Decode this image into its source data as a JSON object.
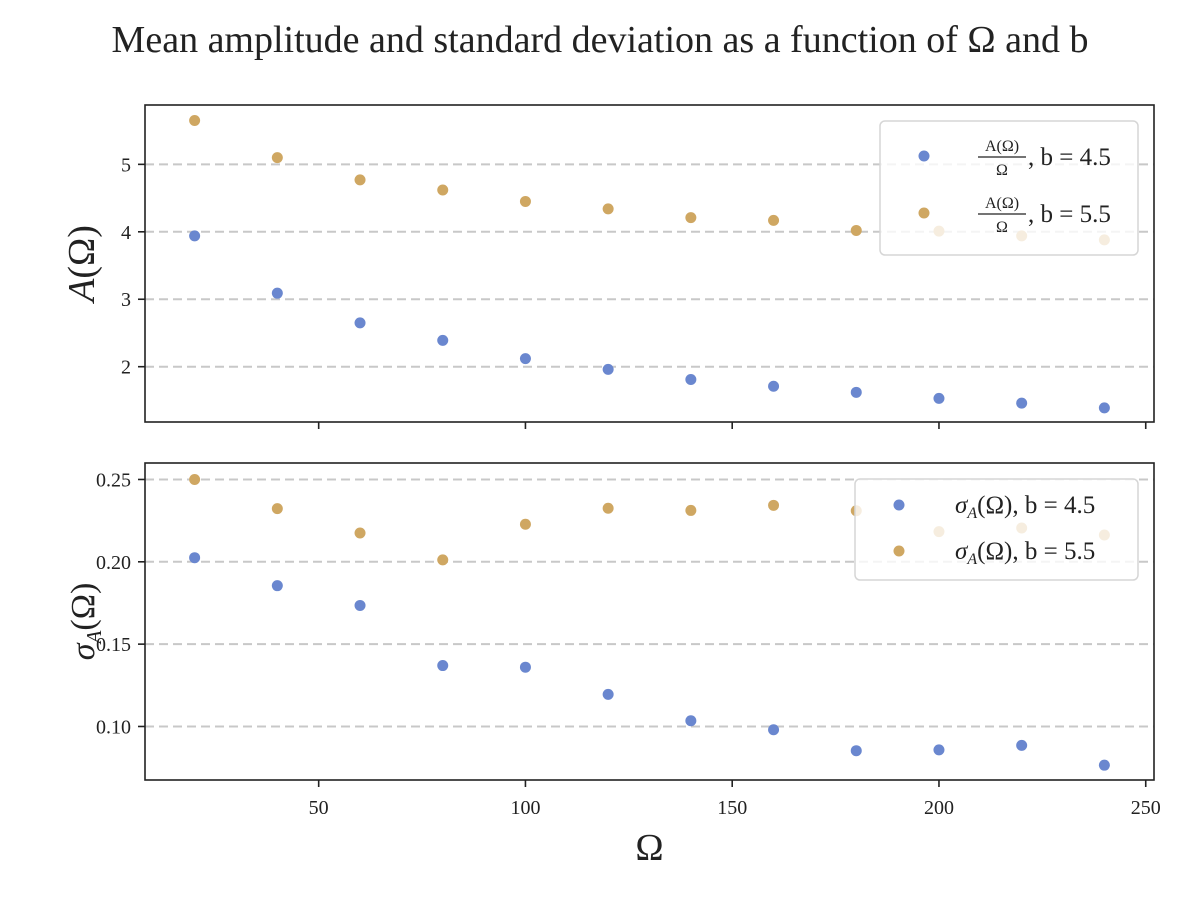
{
  "title": "Mean amplitude and standard deviation as a function of Ω and b",
  "chart_data": [
    {
      "type": "scatter",
      "ylabel": "A(Ω)",
      "xlabel": "",
      "xlim": [
        8,
        252
      ],
      "ylim": [
        1.18,
        5.88
      ],
      "yticks": [
        2,
        3,
        4,
        5
      ],
      "ytick_labels": [
        "2",
        "3",
        "4",
        "5"
      ],
      "xticks": [
        50,
        100,
        150,
        200,
        250
      ],
      "show_xtick_labels": false,
      "grid": "y-dashed",
      "legend_position": "top-right",
      "series": [
        {
          "name": "A(Ω)/Ω, b = 4.5",
          "legend_fraction_num": "A(Ω)",
          "legend_fraction_den": "Ω",
          "legend_suffix": ", b = 4.5",
          "color": "#6a87cf",
          "x": [
            20,
            40,
            60,
            80,
            100,
            120,
            140,
            160,
            180,
            200,
            220,
            240
          ],
          "y": [
            3.94,
            3.09,
            2.65,
            2.39,
            2.12,
            1.96,
            1.81,
            1.71,
            1.62,
            1.53,
            1.46,
            1.39
          ]
        },
        {
          "name": "A(Ω)/Ω, b = 5.5",
          "legend_fraction_num": "A(Ω)",
          "legend_fraction_den": "Ω",
          "legend_suffix": ", b = 5.5",
          "color": "#cfa762",
          "x": [
            20,
            40,
            60,
            80,
            100,
            120,
            140,
            160,
            180,
            200,
            220,
            240
          ],
          "y": [
            5.65,
            5.1,
            4.77,
            4.62,
            4.45,
            4.34,
            4.21,
            4.17,
            4.02,
            4.01,
            3.94,
            3.88
          ]
        }
      ]
    },
    {
      "type": "scatter",
      "ylabel": "σA(Ω)",
      "xlabel": "Ω",
      "xlim": [
        8,
        252
      ],
      "ylim": [
        0.0675,
        0.26
      ],
      "yticks": [
        0.1,
        0.15,
        0.2,
        0.25
      ],
      "ytick_labels": [
        "0.10",
        "0.15",
        "0.20",
        "0.25"
      ],
      "xticks": [
        50,
        100,
        150,
        200,
        250
      ],
      "xtick_labels": [
        "50",
        "100",
        "150",
        "200",
        "250"
      ],
      "grid": "y-dashed",
      "legend_position": "top-right",
      "series": [
        {
          "name": "σA(Ω), b = 4.5",
          "legend_suffix": ", b = 4.5",
          "color": "#6a87cf",
          "x": [
            20,
            40,
            60,
            80,
            100,
            120,
            140,
            160,
            180,
            200,
            220,
            240
          ],
          "y": [
            0.2025,
            0.1855,
            0.1735,
            0.137,
            0.136,
            0.1195,
            0.1035,
            0.098,
            0.0853,
            0.0858,
            0.0885,
            0.0765
          ]
        },
        {
          "name": "σA(Ω), b = 5.5",
          "legend_suffix": ", b = 5.5",
          "color": "#cfa762",
          "x": [
            20,
            40,
            60,
            80,
            100,
            120,
            140,
            160,
            180,
            200,
            220,
            240
          ],
          "y": [
            0.25,
            0.2323,
            0.2175,
            0.2012,
            0.2228,
            0.2325,
            0.2312,
            0.2343,
            0.231,
            0.2183,
            0.2205,
            0.2163
          ]
        }
      ]
    }
  ]
}
